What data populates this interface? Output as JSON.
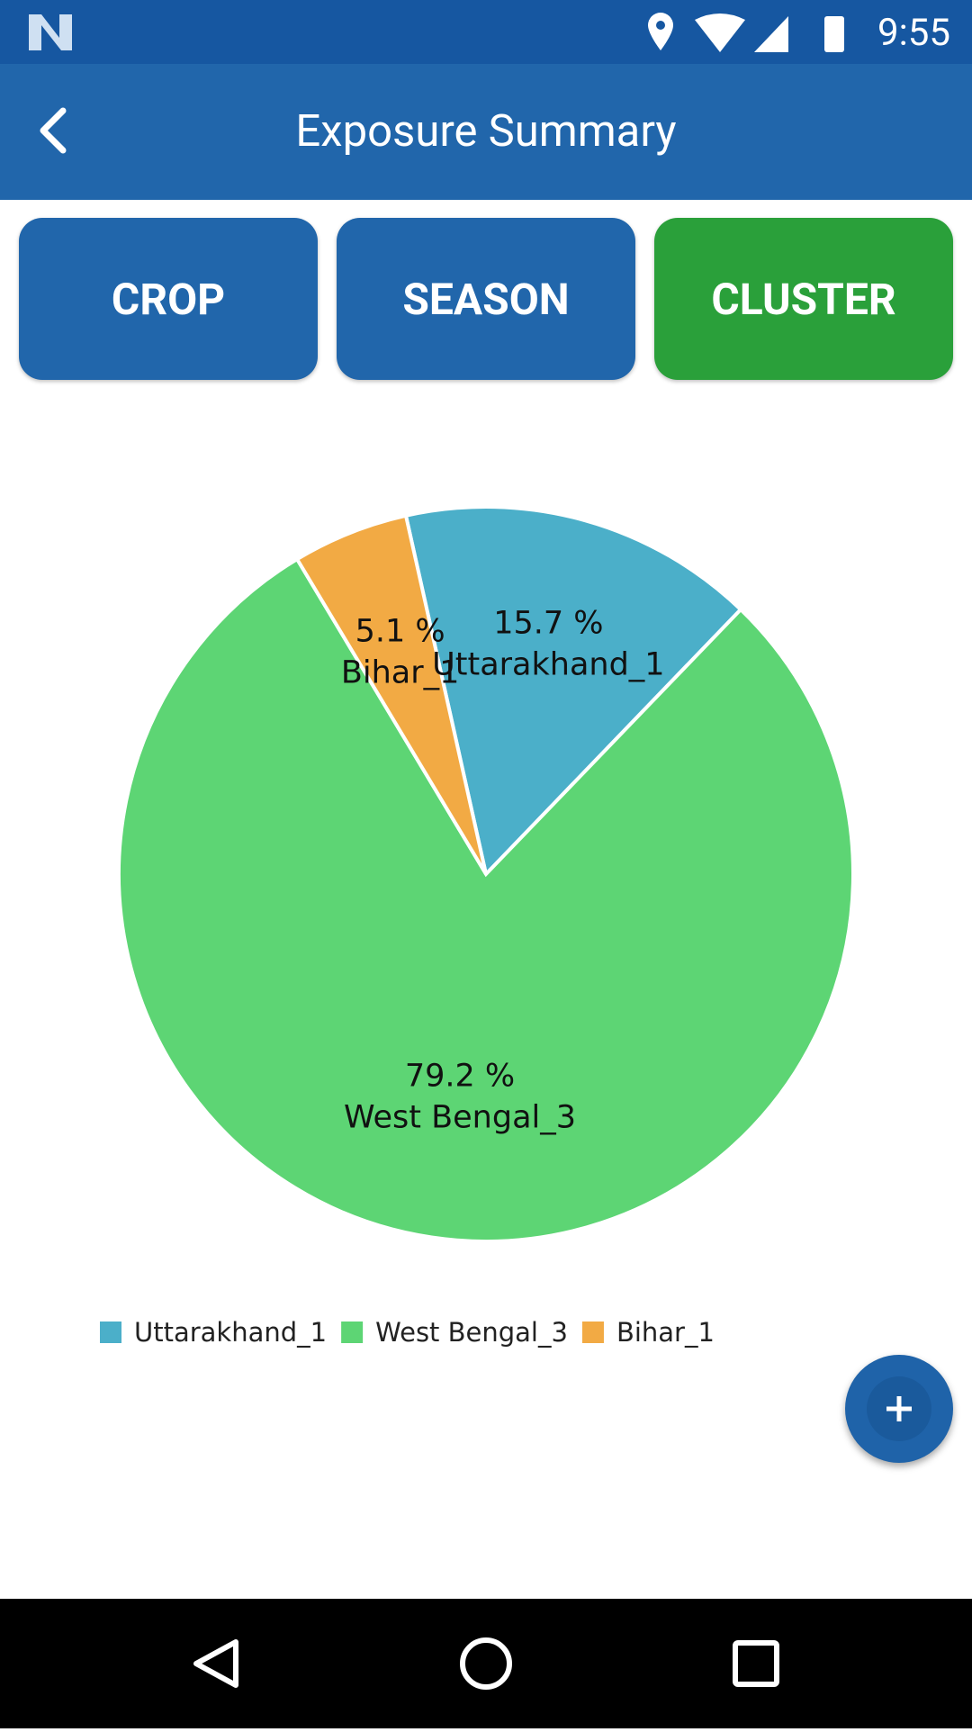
{
  "status_bar": {
    "time": "9:55"
  },
  "header": {
    "title": "Exposure Summary"
  },
  "tabs": [
    "CROP",
    "SEASON",
    "CLUSTER"
  ],
  "chart_data": {
    "type": "pie",
    "categories": [
      "Uttarakhand_1",
      "West Bengal_3",
      "Bihar_1"
    ],
    "values": [
      15.7,
      79.2,
      5.1
    ],
    "value_labels": [
      "15.7 %",
      "79.2 %",
      "5.1 %"
    ],
    "colors": [
      "#4bafc9",
      "#5dd574",
      "#f2aa44"
    ],
    "legend": "bottom-left"
  }
}
